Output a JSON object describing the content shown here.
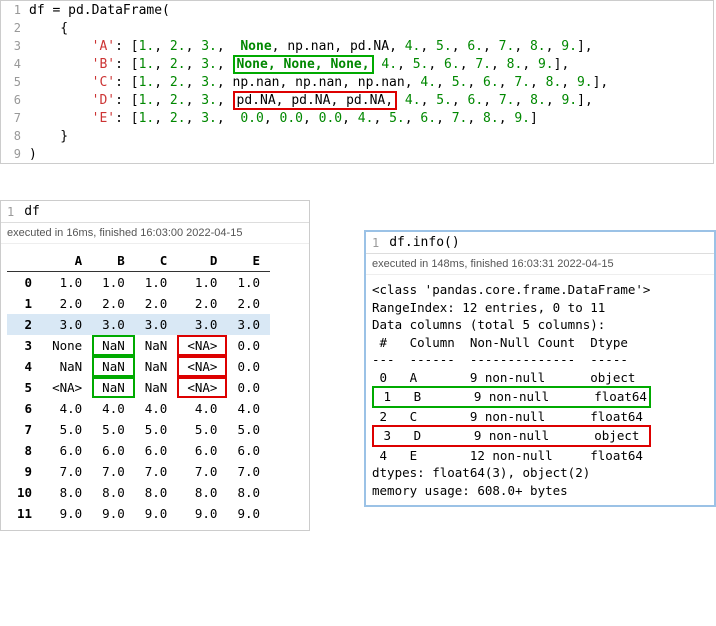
{
  "editor": {
    "lines": [
      {
        "n": 1,
        "tokens": [
          {
            "t": "df = pd.DataFrame(",
            "c": "ident"
          }
        ]
      },
      {
        "n": 2,
        "tokens": [
          {
            "t": "    {",
            "c": "ident"
          }
        ]
      },
      {
        "n": 3,
        "tokens": [
          {
            "t": "        ",
            "c": "ident"
          },
          {
            "t": "'A'",
            "c": "str"
          },
          {
            "t": ": [",
            "c": "ident"
          },
          {
            "t": "1.",
            "c": "num"
          },
          {
            "t": ", ",
            "c": "ident"
          },
          {
            "t": "2.",
            "c": "num"
          },
          {
            "t": ", ",
            "c": "ident"
          },
          {
            "t": "3.",
            "c": "num"
          },
          {
            "t": ",  ",
            "c": "ident"
          },
          {
            "t": "None",
            "c": "kw-none"
          },
          {
            "t": ", np.nan, pd.NA, ",
            "c": "ident"
          },
          {
            "t": "4.",
            "c": "num"
          },
          {
            "t": ", ",
            "c": "ident"
          },
          {
            "t": "5.",
            "c": "num"
          },
          {
            "t": ", ",
            "c": "ident"
          },
          {
            "t": "6.",
            "c": "num"
          },
          {
            "t": ", ",
            "c": "ident"
          },
          {
            "t": "7.",
            "c": "num"
          },
          {
            "t": ", ",
            "c": "ident"
          },
          {
            "t": "8.",
            "c": "num"
          },
          {
            "t": ", ",
            "c": "ident"
          },
          {
            "t": "9.",
            "c": "num"
          },
          {
            "t": "],",
            "c": "ident"
          }
        ]
      },
      {
        "n": 4,
        "tokens": [
          {
            "t": "        ",
            "c": "ident"
          },
          {
            "t": "'B'",
            "c": "str"
          },
          {
            "t": ": [",
            "c": "ident"
          },
          {
            "t": "1.",
            "c": "num"
          },
          {
            "t": ", ",
            "c": "ident"
          },
          {
            "t": "2.",
            "c": "num"
          },
          {
            "t": ", ",
            "c": "ident"
          },
          {
            "t": "3.",
            "c": "num"
          },
          {
            "t": ", ",
            "c": "ident"
          },
          {
            "t": "None, None, None,",
            "c": "kw-none",
            "box": "green"
          },
          {
            "t": " ",
            "c": "ident"
          },
          {
            "t": "4.",
            "c": "num"
          },
          {
            "t": ", ",
            "c": "ident"
          },
          {
            "t": "5.",
            "c": "num"
          },
          {
            "t": ", ",
            "c": "ident"
          },
          {
            "t": "6.",
            "c": "num"
          },
          {
            "t": ", ",
            "c": "ident"
          },
          {
            "t": "7.",
            "c": "num"
          },
          {
            "t": ", ",
            "c": "ident"
          },
          {
            "t": "8.",
            "c": "num"
          },
          {
            "t": ", ",
            "c": "ident"
          },
          {
            "t": "9.",
            "c": "num"
          },
          {
            "t": "],",
            "c": "ident"
          }
        ]
      },
      {
        "n": 5,
        "tokens": [
          {
            "t": "        ",
            "c": "ident"
          },
          {
            "t": "'C'",
            "c": "str"
          },
          {
            "t": ": [",
            "c": "ident"
          },
          {
            "t": "1.",
            "c": "num"
          },
          {
            "t": ", ",
            "c": "ident"
          },
          {
            "t": "2.",
            "c": "num"
          },
          {
            "t": ", ",
            "c": "ident"
          },
          {
            "t": "3.",
            "c": "num"
          },
          {
            "t": ", np.nan, np.nan, np.nan, ",
            "c": "ident"
          },
          {
            "t": "4.",
            "c": "num"
          },
          {
            "t": ", ",
            "c": "ident"
          },
          {
            "t": "5.",
            "c": "num"
          },
          {
            "t": ", ",
            "c": "ident"
          },
          {
            "t": "6.",
            "c": "num"
          },
          {
            "t": ", ",
            "c": "ident"
          },
          {
            "t": "7.",
            "c": "num"
          },
          {
            "t": ", ",
            "c": "ident"
          },
          {
            "t": "8.",
            "c": "num"
          },
          {
            "t": ", ",
            "c": "ident"
          },
          {
            "t": "9.",
            "c": "num"
          },
          {
            "t": "],",
            "c": "ident"
          }
        ]
      },
      {
        "n": 6,
        "tokens": [
          {
            "t": "        ",
            "c": "ident"
          },
          {
            "t": "'D'",
            "c": "str"
          },
          {
            "t": ": [",
            "c": "ident"
          },
          {
            "t": "1.",
            "c": "num"
          },
          {
            "t": ", ",
            "c": "ident"
          },
          {
            "t": "2.",
            "c": "num"
          },
          {
            "t": ", ",
            "c": "ident"
          },
          {
            "t": "3.",
            "c": "num"
          },
          {
            "t": ", ",
            "c": "ident"
          },
          {
            "t": "pd.NA, pd.NA, pd.NA,",
            "c": "ident",
            "box": "red"
          },
          {
            "t": " ",
            "c": "ident"
          },
          {
            "t": "4.",
            "c": "num"
          },
          {
            "t": ", ",
            "c": "ident"
          },
          {
            "t": "5.",
            "c": "num"
          },
          {
            "t": ", ",
            "c": "ident"
          },
          {
            "t": "6.",
            "c": "num"
          },
          {
            "t": ", ",
            "c": "ident"
          },
          {
            "t": "7.",
            "c": "num"
          },
          {
            "t": ", ",
            "c": "ident"
          },
          {
            "t": "8.",
            "c": "num"
          },
          {
            "t": ", ",
            "c": "ident"
          },
          {
            "t": "9.",
            "c": "num"
          },
          {
            "t": "],",
            "c": "ident"
          }
        ]
      },
      {
        "n": 7,
        "tokens": [
          {
            "t": "        ",
            "c": "ident"
          },
          {
            "t": "'E'",
            "c": "str"
          },
          {
            "t": ": [",
            "c": "ident"
          },
          {
            "t": "1.",
            "c": "num"
          },
          {
            "t": ", ",
            "c": "ident"
          },
          {
            "t": "2.",
            "c": "num"
          },
          {
            "t": ", ",
            "c": "ident"
          },
          {
            "t": "3.",
            "c": "num"
          },
          {
            "t": ",  ",
            "c": "ident"
          },
          {
            "t": "0.0",
            "c": "num"
          },
          {
            "t": ", ",
            "c": "ident"
          },
          {
            "t": "0.0",
            "c": "num"
          },
          {
            "t": ", ",
            "c": "ident"
          },
          {
            "t": "0.0",
            "c": "num"
          },
          {
            "t": ", ",
            "c": "ident"
          },
          {
            "t": "4.",
            "c": "num"
          },
          {
            "t": ", ",
            "c": "ident"
          },
          {
            "t": "5.",
            "c": "num"
          },
          {
            "t": ", ",
            "c": "ident"
          },
          {
            "t": "6.",
            "c": "num"
          },
          {
            "t": ", ",
            "c": "ident"
          },
          {
            "t": "7.",
            "c": "num"
          },
          {
            "t": ", ",
            "c": "ident"
          },
          {
            "t": "8.",
            "c": "num"
          },
          {
            "t": ", ",
            "c": "ident"
          },
          {
            "t": "9.",
            "c": "num"
          },
          {
            "t": "]",
            "c": "ident"
          }
        ]
      },
      {
        "n": 8,
        "tokens": [
          {
            "t": "    }",
            "c": "ident"
          }
        ]
      },
      {
        "n": 9,
        "tokens": [
          {
            "t": ")",
            "c": "ident"
          }
        ]
      }
    ]
  },
  "df_panel": {
    "cell_num": "1",
    "code": "df",
    "exec": "executed in 16ms, finished 16:03:00 2022-04-15",
    "columns": [
      "",
      "A",
      "B",
      "C",
      "D",
      "E"
    ],
    "rows": [
      {
        "idx": "0",
        "cells": [
          "1.0",
          "1.0",
          "1.0",
          "1.0",
          "1.0"
        ]
      },
      {
        "idx": "1",
        "cells": [
          "2.0",
          "2.0",
          "2.0",
          "2.0",
          "2.0"
        ]
      },
      {
        "idx": "2",
        "cells": [
          "3.0",
          "3.0",
          "3.0",
          "3.0",
          "3.0"
        ],
        "highlight": true
      },
      {
        "idx": "3",
        "cells": [
          "None",
          "NaN",
          "NaN",
          "<NA>",
          "0.0"
        ],
        "b_box": "green",
        "d_box": "red"
      },
      {
        "idx": "4",
        "cells": [
          "NaN",
          "NaN",
          "NaN",
          "<NA>",
          "0.0"
        ],
        "b_box": "green",
        "d_box": "red"
      },
      {
        "idx": "5",
        "cells": [
          "<NA>",
          "NaN",
          "NaN",
          "<NA>",
          "0.0"
        ],
        "b_box": "green",
        "d_box": "red"
      },
      {
        "idx": "6",
        "cells": [
          "4.0",
          "4.0",
          "4.0",
          "4.0",
          "4.0"
        ]
      },
      {
        "idx": "7",
        "cells": [
          "5.0",
          "5.0",
          "5.0",
          "5.0",
          "5.0"
        ]
      },
      {
        "idx": "8",
        "cells": [
          "6.0",
          "6.0",
          "6.0",
          "6.0",
          "6.0"
        ]
      },
      {
        "idx": "9",
        "cells": [
          "7.0",
          "7.0",
          "7.0",
          "7.0",
          "7.0"
        ]
      },
      {
        "idx": "10",
        "cells": [
          "8.0",
          "8.0",
          "8.0",
          "8.0",
          "8.0"
        ]
      },
      {
        "idx": "11",
        "cells": [
          "9.0",
          "9.0",
          "9.0",
          "9.0",
          "9.0"
        ]
      }
    ]
  },
  "info_panel": {
    "cell_num": "1",
    "code": "df.info()",
    "exec": "executed in 148ms, finished 16:03:31 2022-04-15",
    "lines": [
      {
        "t": "<class 'pandas.core.frame.DataFrame'>"
      },
      {
        "t": "RangeIndex: 12 entries, 0 to 11"
      },
      {
        "t": "Data columns (total 5 columns):"
      },
      {
        "t": " #   Column  Non-Null Count  Dtype  "
      },
      {
        "t": "---  ------  --------------  -----  "
      },
      {
        "t": " 0   A       9 non-null      object "
      },
      {
        "t": " 1   B       9 non-null      float64",
        "box": "green"
      },
      {
        "t": " 2   C       9 non-null      float64"
      },
      {
        "t": " 3   D       9 non-null      object ",
        "box": "red"
      },
      {
        "t": " 4   E       12 non-null     float64"
      },
      {
        "t": "dtypes: float64(3), object(2)"
      },
      {
        "t": "memory usage: 608.0+ bytes"
      }
    ]
  },
  "colors": {
    "green_box": "#00aa00",
    "red_box": "#dd0000",
    "highlight_row": "#d9e8f5",
    "info_border": "#9bc2e6"
  }
}
